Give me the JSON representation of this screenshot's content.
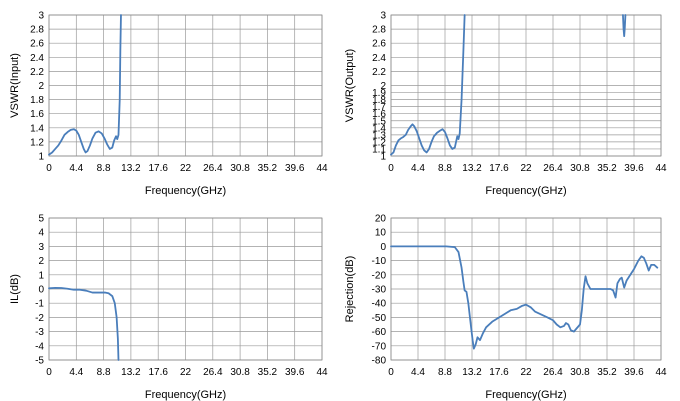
{
  "series_color": "#4a7ebb",
  "grid_color": "#9a9a9a",
  "chart_data": [
    {
      "type": "line",
      "xlabel": "Frequency(GHz)",
      "ylabel": "VSWR(Input)",
      "xlim": [
        0,
        44
      ],
      "ylim": [
        1,
        3
      ],
      "xticks": [
        0,
        4.4,
        8.8,
        13.2,
        17.6,
        22,
        26.4,
        30.8,
        35.2,
        39.6,
        44
      ],
      "xtick_labels": [
        "0",
        "4.4",
        "8.8",
        "13.2",
        "17.6",
        "22",
        "26.4",
        "30.8",
        "35.2",
        "39.6",
        "44"
      ],
      "yticks": [
        1,
        1.2,
        1.4,
        1.6,
        1.8,
        2,
        2.2,
        2.4,
        2.6,
        2.8,
        3
      ],
      "ytick_labels": [
        "1",
        "1.2",
        "1.4",
        "1.6",
        "1.8",
        "2",
        "2.2",
        "2.4",
        "2.6",
        "2.8",
        "3"
      ],
      "grid": true,
      "series": [
        {
          "segments": [
            [
              [
                0,
                1.02
              ],
              [
                0.5,
                1.05
              ],
              [
                1,
                1.1
              ],
              [
                1.5,
                1.15
              ],
              [
                2,
                1.22
              ],
              [
                2.5,
                1.3
              ],
              [
                3,
                1.34
              ],
              [
                3.5,
                1.37
              ],
              [
                4,
                1.38
              ],
              [
                4.4,
                1.36
              ],
              [
                4.8,
                1.3
              ],
              [
                5.2,
                1.2
              ],
              [
                5.6,
                1.1
              ],
              [
                5.9,
                1.05
              ],
              [
                6.2,
                1.07
              ],
              [
                6.6,
                1.15
              ],
              [
                7,
                1.25
              ],
              [
                7.5,
                1.33
              ],
              [
                8,
                1.35
              ],
              [
                8.5,
                1.32
              ],
              [
                9,
                1.24
              ],
              [
                9.4,
                1.16
              ],
              [
                9.8,
                1.1
              ],
              [
                10.2,
                1.12
              ],
              [
                10.5,
                1.22
              ],
              [
                10.8,
                1.28
              ],
              [
                11.0,
                1.24
              ],
              [
                11.2,
                1.3
              ],
              [
                11.4,
                1.8
              ],
              [
                11.5,
                2.5
              ],
              [
                11.6,
                3.0
              ]
            ]
          ]
        }
      ]
    },
    {
      "type": "line",
      "xlabel": "Frequency(GHz)",
      "ylabel": "VSWR(Output)",
      "xlim": [
        0,
        44
      ],
      "ylim": [
        1,
        3
      ],
      "xticks": [
        0,
        4.4,
        8.8,
        13.2,
        17.6,
        22,
        26.4,
        30.8,
        35.2,
        39.6,
        44
      ],
      "xtick_labels": [
        "0",
        "4.4",
        "8.8",
        "13.2",
        "17.6",
        "22",
        "26.4",
        "30.8",
        "35.2",
        "39.6",
        "44"
      ],
      "yticks": [
        1,
        1.1,
        1.2,
        1.3,
        1.4,
        1.5,
        1.6,
        1.7,
        1.8,
        1.9,
        2,
        2.2,
        2.4,
        2.6,
        2.8,
        3
      ],
      "ytick_labels": [
        "1",
        "1.1",
        "1.2",
        "1.3",
        "1.4",
        "1.5",
        "1.6",
        "1.7",
        "1.8",
        "1.9",
        "2",
        "2.2",
        "2.4",
        "2.6",
        "2.8",
        "3"
      ],
      "grid": true,
      "series": [
        {
          "segments": [
            [
              [
                0,
                1.02
              ],
              [
                0.4,
                1.05
              ],
              [
                0.8,
                1.15
              ],
              [
                1.2,
                1.22
              ],
              [
                1.6,
                1.25
              ],
              [
                2,
                1.27
              ],
              [
                2.4,
                1.3
              ],
              [
                2.8,
                1.37
              ],
              [
                3.2,
                1.42
              ],
              [
                3.5,
                1.45
              ],
              [
                3.8,
                1.42
              ],
              [
                4.2,
                1.35
              ],
              [
                4.6,
                1.25
              ],
              [
                5,
                1.15
              ],
              [
                5.4,
                1.08
              ],
              [
                5.8,
                1.05
              ],
              [
                6.2,
                1.1
              ],
              [
                6.6,
                1.2
              ],
              [
                7,
                1.28
              ],
              [
                7.5,
                1.33
              ],
              [
                8,
                1.36
              ],
              [
                8.4,
                1.38
              ],
              [
                8.8,
                1.34
              ],
              [
                9.2,
                1.25
              ],
              [
                9.6,
                1.15
              ],
              [
                10,
                1.1
              ],
              [
                10.4,
                1.12
              ],
              [
                10.8,
                1.28
              ],
              [
                11.0,
                1.24
              ],
              [
                11.2,
                1.32
              ],
              [
                11.5,
                1.8
              ],
              [
                11.8,
                2.5
              ],
              [
                12.0,
                3.0
              ]
            ],
            [
              [
                37.8,
                3.0
              ],
              [
                37.9,
                2.8
              ],
              [
                38.0,
                2.7
              ],
              [
                38.1,
                2.82
              ],
              [
                38.2,
                3.0
              ]
            ]
          ]
        }
      ]
    },
    {
      "type": "line",
      "xlabel": "Frequency(GHz)",
      "ylabel": "IL(dB)",
      "xlim": [
        0,
        44
      ],
      "ylim": [
        -5,
        5
      ],
      "xticks": [
        0,
        4.4,
        8.8,
        13.2,
        17.6,
        22,
        26.4,
        30.8,
        35.2,
        39.6,
        44
      ],
      "xtick_labels": [
        "0",
        "4.4",
        "8.8",
        "13.2",
        "17.6",
        "22",
        "26.4",
        "30.8",
        "35.2",
        "39.6",
        "44"
      ],
      "yticks": [
        -5,
        -4,
        -3,
        -2,
        -1,
        0,
        1,
        2,
        3,
        4,
        5
      ],
      "ytick_labels": [
        "-5",
        "-4",
        "-3",
        "-2",
        "-1",
        "0",
        "1",
        "2",
        "3",
        "4",
        "5"
      ],
      "grid": true,
      "series": [
        {
          "segments": [
            [
              [
                0,
                0.05
              ],
              [
                1,
                0.08
              ],
              [
                2,
                0.07
              ],
              [
                3,
                0.02
              ],
              [
                4,
                -0.05
              ],
              [
                5,
                -0.05
              ],
              [
                6,
                -0.12
              ],
              [
                7,
                -0.25
              ],
              [
                8,
                -0.25
              ],
              [
                9,
                -0.25
              ],
              [
                9.6,
                -0.3
              ],
              [
                10.2,
                -0.5
              ],
              [
                10.6,
                -1.0
              ],
              [
                10.9,
                -2.0
              ],
              [
                11.1,
                -3.5
              ],
              [
                11.2,
                -5.0
              ]
            ]
          ]
        }
      ]
    },
    {
      "type": "line",
      "xlabel": "Frequency(GHz)",
      "ylabel": "Rejection(dB)",
      "xlim": [
        0,
        44
      ],
      "ylim": [
        -80,
        20
      ],
      "xticks": [
        0,
        4.4,
        8.8,
        13.2,
        17.6,
        22,
        26.4,
        30.8,
        35.2,
        39.6,
        44
      ],
      "xtick_labels": [
        "0",
        "4.4",
        "8.8",
        "13.2",
        "17.6",
        "22",
        "26.4",
        "30.8",
        "35.2",
        "39.6",
        "44"
      ],
      "yticks": [
        -80,
        -70,
        -60,
        -50,
        -40,
        -30,
        -20,
        -10,
        0,
        10,
        20
      ],
      "ytick_labels": [
        "-80",
        "-70",
        "-60",
        "-50",
        "-40",
        "-30",
        "-20",
        "-10",
        "0",
        "10",
        "20"
      ],
      "grid": true,
      "series": [
        {
          "segments": [
            [
              [
                0,
                0
              ],
              [
                5,
                0
              ],
              [
                9,
                0
              ],
              [
                10.4,
                -0.5
              ],
              [
                11,
                -4
              ],
              [
                11.5,
                -15
              ],
              [
                11.8,
                -25
              ],
              [
                12,
                -31
              ],
              [
                12.3,
                -32
              ],
              [
                12.6,
                -40
              ],
              [
                13,
                -55
              ],
              [
                13.3,
                -66
              ],
              [
                13.5,
                -72
              ],
              [
                13.8,
                -69
              ],
              [
                14.1,
                -64
              ],
              [
                14.5,
                -66
              ],
              [
                15,
                -61
              ],
              [
                15.5,
                -57
              ],
              [
                16.5,
                -53
              ],
              [
                18,
                -49
              ],
              [
                19.5,
                -45
              ],
              [
                20.5,
                -44
              ],
              [
                21.3,
                -42
              ],
              [
                22,
                -41
              ],
              [
                22.8,
                -43
              ],
              [
                23.5,
                -46
              ],
              [
                24.5,
                -48
              ],
              [
                25.5,
                -50
              ],
              [
                26.4,
                -52
              ],
              [
                27,
                -55
              ],
              [
                27.6,
                -57
              ],
              [
                28.2,
                -56
              ],
              [
                28.5,
                -54
              ],
              [
                28.9,
                -55
              ],
              [
                29.3,
                -59
              ],
              [
                29.8,
                -60
              ],
              [
                30.2,
                -58
              ],
              [
                30.8,
                -55
              ],
              [
                31.1,
                -45
              ],
              [
                31.4,
                -30
              ],
              [
                31.7,
                -21
              ],
              [
                32,
                -26
              ],
              [
                32.5,
                -30
              ],
              [
                34,
                -30
              ],
              [
                35,
                -30
              ],
              [
                35.8,
                -30
              ],
              [
                36.2,
                -31
              ],
              [
                36.6,
                -36
              ],
              [
                36.9,
                -26
              ],
              [
                37.3,
                -23
              ],
              [
                37.6,
                -22
              ],
              [
                38,
                -29
              ],
              [
                38.4,
                -24
              ],
              [
                39,
                -20
              ],
              [
                39.6,
                -16
              ],
              [
                40.3,
                -10
              ],
              [
                40.8,
                -7
              ],
              [
                41.2,
                -8
              ],
              [
                41.6,
                -12
              ],
              [
                42,
                -17
              ],
              [
                42.4,
                -13
              ],
              [
                42.9,
                -13
              ],
              [
                43.4,
                -15
              ]
            ]
          ]
        }
      ]
    }
  ]
}
